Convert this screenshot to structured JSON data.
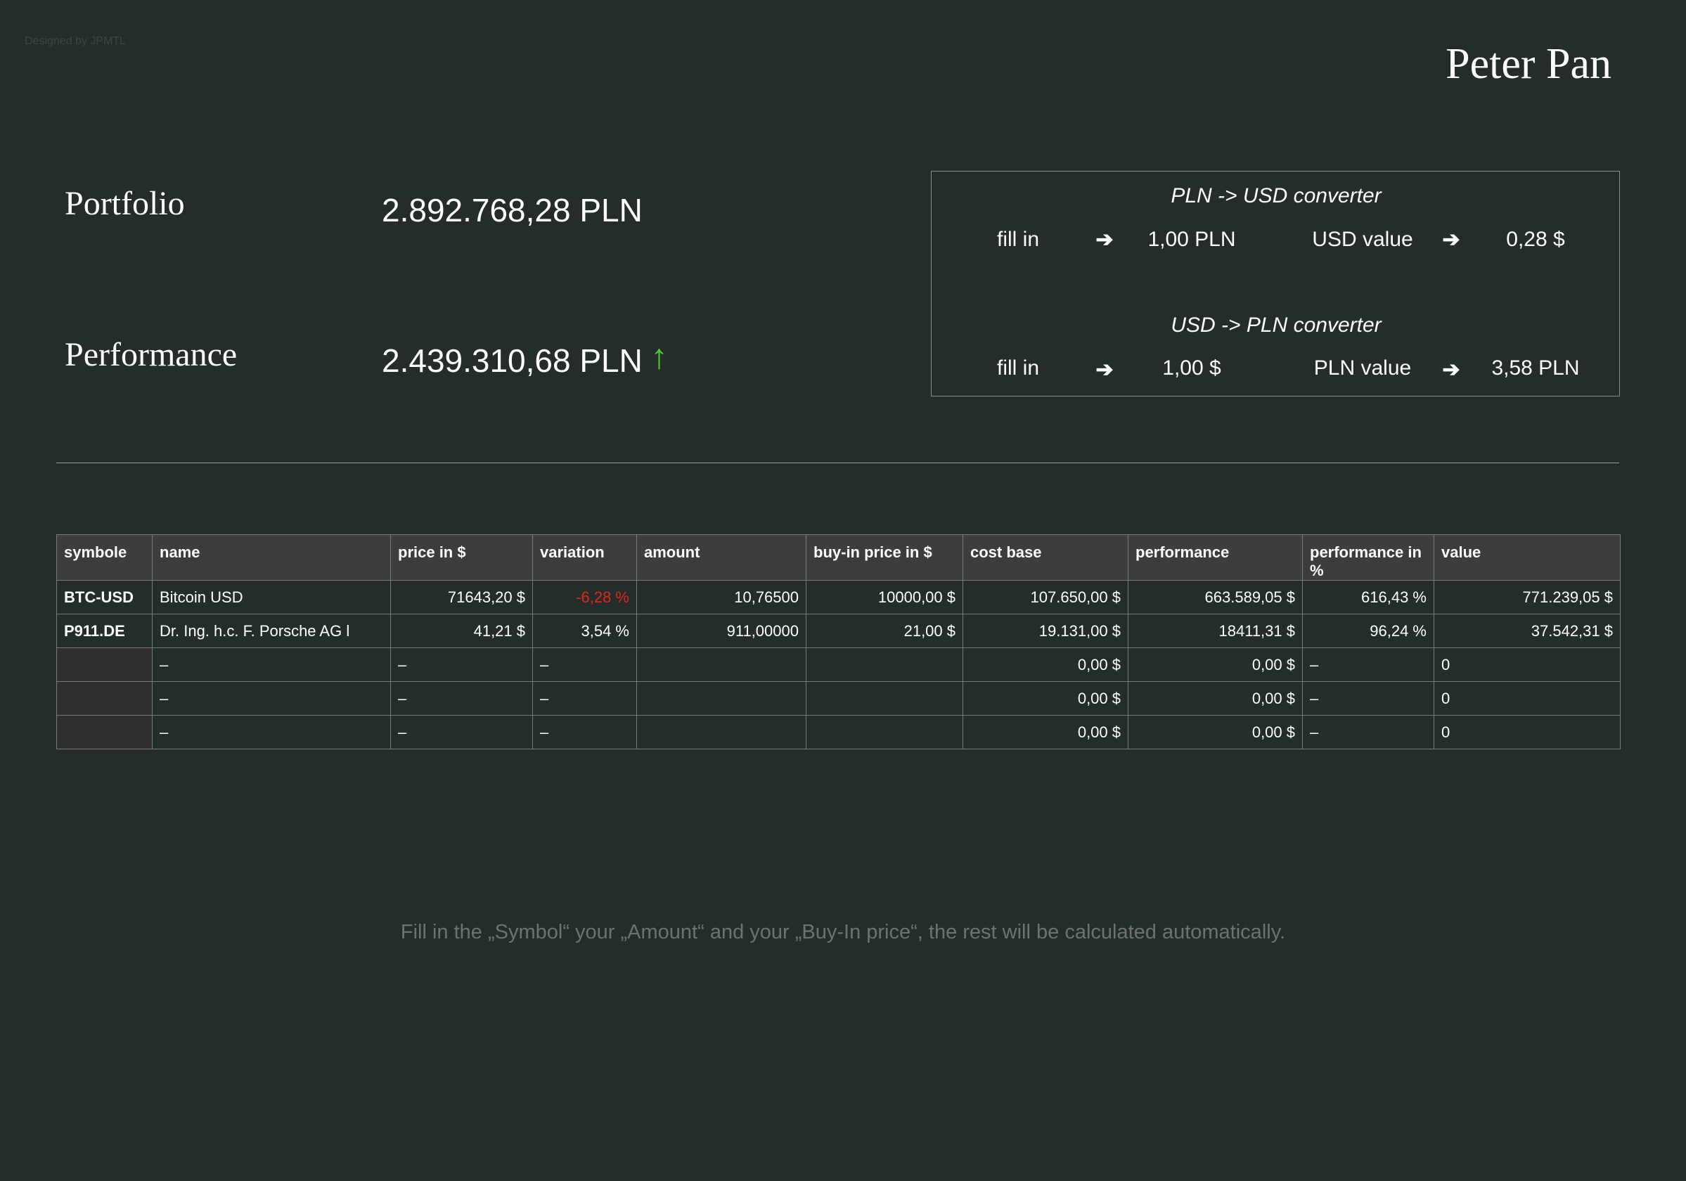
{
  "header": {
    "credit": "Designed by JPMTL",
    "title": "Peter Pan"
  },
  "summary": {
    "portfolio": {
      "label": "Portfolio",
      "value": "2.892.768,28 PLN"
    },
    "performance": {
      "label": "Performance",
      "value": "2.439.310,68 PLN"
    }
  },
  "converters": [
    {
      "title": "PLN -> USD converter",
      "fill_label": "fill in",
      "input": "1,00 PLN",
      "result_label": "USD value",
      "result": "0,28 $"
    },
    {
      "title": "USD -> PLN converter",
      "fill_label": "fill in",
      "input": "1,00 $",
      "result_label": "PLN value",
      "result": "3,58 PLN"
    }
  ],
  "table": {
    "columns": [
      "symbole",
      "name",
      "price in $",
      "variation",
      "amount",
      "buy-in price in $",
      "cost base",
      "performance",
      "performance in %",
      "value"
    ],
    "rows": [
      [
        "BTC-USD",
        "Bitcoin USD",
        "71643,20 $",
        "-6,28 %",
        "10,76500",
        "10000,00 $",
        "107.650,00 $",
        "663.589,05 $",
        "616,43 %",
        "771.239,05 $"
      ],
      [
        "P911.DE",
        "Dr. Ing. h.c. F. Porsche AG   l",
        "41,21 $",
        "3,54 %",
        "911,00000",
        "21,00 $",
        "19.131,00 $",
        "18411,31 $",
        "96,24 %",
        "37.542,31 $"
      ],
      [
        null,
        "–",
        "–",
        "–",
        null,
        null,
        "0,00 $",
        "0,00 $",
        "–",
        "0"
      ],
      [
        null,
        "–",
        "–",
        "–",
        null,
        null,
        "0,00 $",
        "0,00 $",
        "–",
        "0"
      ],
      [
        null,
        "–",
        "–",
        "–",
        null,
        null,
        "0,00 $",
        "0,00 $",
        "–",
        "0"
      ]
    ]
  },
  "footer": {
    "note": "Fill in the „Symbol“ your „Amount“ and your „Buy-In price“, the rest will be calculated automatically."
  }
}
